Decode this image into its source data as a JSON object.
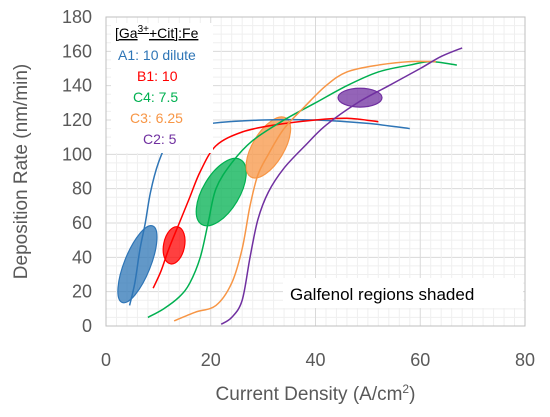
{
  "chart_data": {
    "type": "line",
    "xlabel": "Current Density (A/cm",
    "xlabel_sup": "2",
    "xlabel_end": ")",
    "ylabel": "Deposition Rate (nm/min)",
    "xlim": [
      0,
      80
    ],
    "ylim": [
      0,
      180
    ],
    "x_ticks": [
      "0",
      "20",
      "40",
      "60",
      "80"
    ],
    "y_ticks": [
      "0",
      "20",
      "40",
      "60",
      "80",
      "100",
      "120",
      "140",
      "160",
      "180"
    ],
    "grid": true,
    "legend_title": {
      "pre": "[Ga",
      "sup": "3+",
      "post": "+Cit]:Fe"
    },
    "annotation": "Galfenol regions shaded",
    "series": [
      {
        "name": "A1: 10 dilute",
        "color": "#2e75b6",
        "points": [
          [
            4.5,
            12
          ],
          [
            5.5,
            25
          ],
          [
            6.5,
            45
          ],
          [
            7.5,
            60
          ],
          [
            8.5,
            78
          ],
          [
            10,
            95
          ],
          [
            12,
            108
          ],
          [
            15,
            115
          ],
          [
            20,
            118
          ],
          [
            30,
            120
          ],
          [
            40,
            120
          ],
          [
            50,
            118
          ],
          [
            58,
            115
          ]
        ],
        "ellipse": {
          "cx": 6,
          "cy": 36,
          "rx": 2.5,
          "ry": 24,
          "tilt": 0.4
        }
      },
      {
        "name": "B1: 10",
        "color": "#ff0000",
        "points": [
          [
            9,
            22
          ],
          [
            10.5,
            32
          ],
          [
            12,
            45
          ],
          [
            14,
            60
          ],
          [
            16,
            75
          ],
          [
            18,
            90
          ],
          [
            21,
            105
          ],
          [
            26,
            113
          ],
          [
            32,
            117
          ],
          [
            40,
            120
          ],
          [
            46,
            121
          ],
          [
            52,
            119
          ]
        ],
        "ellipse": {
          "cx": 13,
          "cy": 47,
          "rx": 2,
          "ry": 11,
          "tilt": 0.2
        }
      },
      {
        "name": "C4: 7.5",
        "color": "#00b050",
        "points": [
          [
            8,
            5
          ],
          [
            11,
            10
          ],
          [
            14,
            17
          ],
          [
            16,
            25
          ],
          [
            18,
            40
          ],
          [
            19.5,
            60
          ],
          [
            21,
            80
          ],
          [
            24,
            95
          ],
          [
            28,
            108
          ],
          [
            34,
            120
          ],
          [
            40,
            130
          ],
          [
            46,
            140
          ],
          [
            52,
            148
          ],
          [
            58,
            152
          ],
          [
            62,
            154
          ],
          [
            67,
            152
          ]
        ],
        "ellipse": {
          "cx": 22,
          "cy": 78,
          "rx": 3.5,
          "ry": 22,
          "tilt": 0.6
        }
      },
      {
        "name": "C3: 6.25",
        "color": "#f79646",
        "points": [
          [
            13,
            3
          ],
          [
            17,
            8
          ],
          [
            21,
            12
          ],
          [
            24,
            25
          ],
          [
            26,
            45
          ],
          [
            27.5,
            70
          ],
          [
            29,
            88
          ],
          [
            31,
            100
          ],
          [
            34,
            115
          ],
          [
            38,
            128
          ],
          [
            42,
            140
          ],
          [
            46,
            148
          ],
          [
            52,
            152
          ],
          [
            58,
            154
          ],
          [
            63,
            154
          ]
        ],
        "ellipse": {
          "cx": 31,
          "cy": 104,
          "rx": 3,
          "ry": 20,
          "tilt": 0.6
        }
      },
      {
        "name": "C2: 5",
        "color": "#7030a0",
        "points": [
          [
            22,
            1
          ],
          [
            24,
            5
          ],
          [
            26,
            15
          ],
          [
            27.5,
            40
          ],
          [
            29,
            62
          ],
          [
            31,
            78
          ],
          [
            34,
            92
          ],
          [
            38,
            105
          ],
          [
            42,
            117
          ],
          [
            48,
            130
          ],
          [
            54,
            140
          ],
          [
            60,
            150
          ],
          [
            64,
            157
          ],
          [
            68,
            162
          ]
        ],
        "ellipse": {
          "cx": 48.5,
          "cy": 133,
          "rx": 4.2,
          "ry": 5.5,
          "tilt": 0
        }
      }
    ]
  }
}
